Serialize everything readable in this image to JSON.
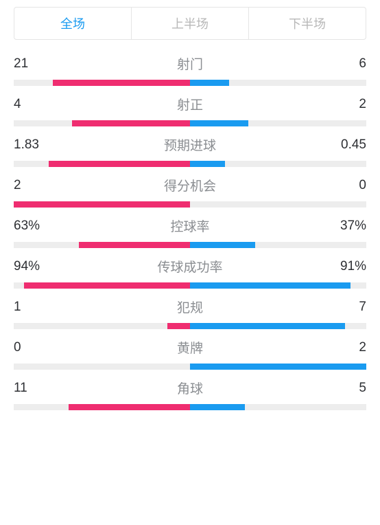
{
  "colors": {
    "tab_active": "#1a9bf0",
    "tab_inactive": "#b8b8b8",
    "value_text": "#2d2f33",
    "stat_label": "#8a8d91",
    "track_bg": "#ededed",
    "home_bar": "#ef2d70",
    "away_bar": "#1a9bf0"
  },
  "tabs": [
    {
      "label": "全场",
      "active": true
    },
    {
      "label": "上半场",
      "active": false
    },
    {
      "label": "下半场",
      "active": false
    }
  ],
  "stats": [
    {
      "name": "射门",
      "home": "21",
      "away": "6",
      "home_pct": 78,
      "away_pct": 22
    },
    {
      "name": "射正",
      "home": "4",
      "away": "2",
      "home_pct": 67,
      "away_pct": 33
    },
    {
      "name": "预期进球",
      "home": "1.83",
      "away": "0.45",
      "home_pct": 80,
      "away_pct": 20
    },
    {
      "name": "得分机会",
      "home": "2",
      "away": "0",
      "home_pct": 100,
      "away_pct": 0
    },
    {
      "name": "控球率",
      "home": "63%",
      "away": "37%",
      "home_pct": 63,
      "away_pct": 37
    },
    {
      "name": "传球成功率",
      "home": "94%",
      "away": "91%",
      "home_pct": 94,
      "away_pct": 91
    },
    {
      "name": "犯规",
      "home": "1",
      "away": "7",
      "home_pct": 13,
      "away_pct": 88
    },
    {
      "name": "黄牌",
      "home": "0",
      "away": "2",
      "home_pct": 0,
      "away_pct": 100
    },
    {
      "name": "角球",
      "home": "11",
      "away": "5",
      "home_pct": 69,
      "away_pct": 31
    }
  ]
}
